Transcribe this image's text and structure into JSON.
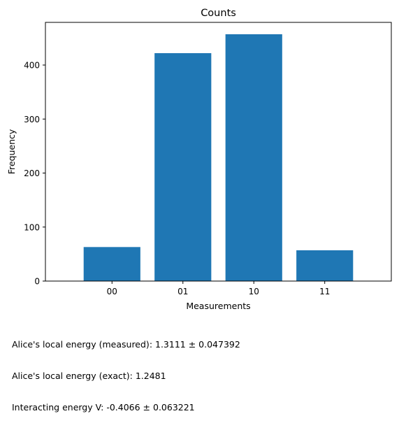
{
  "chart_data": {
    "type": "bar",
    "title": "Counts",
    "xlabel": "Measurements",
    "ylabel": "Frequency",
    "categories": [
      "00",
      "01",
      "10",
      "11"
    ],
    "values": [
      63,
      422,
      457,
      57
    ],
    "ylim": [
      0,
      479
    ],
    "yticks": [
      0,
      100,
      200,
      300,
      400
    ],
    "grid": false,
    "bar_color": "#1f77b4"
  },
  "notes": [
    "Alice's local energy (measured): 1.3111 ± 0.047392",
    "Alice's local energy (exact): 1.2481",
    "Interacting energy V: -0.4066 ± 0.063221"
  ]
}
